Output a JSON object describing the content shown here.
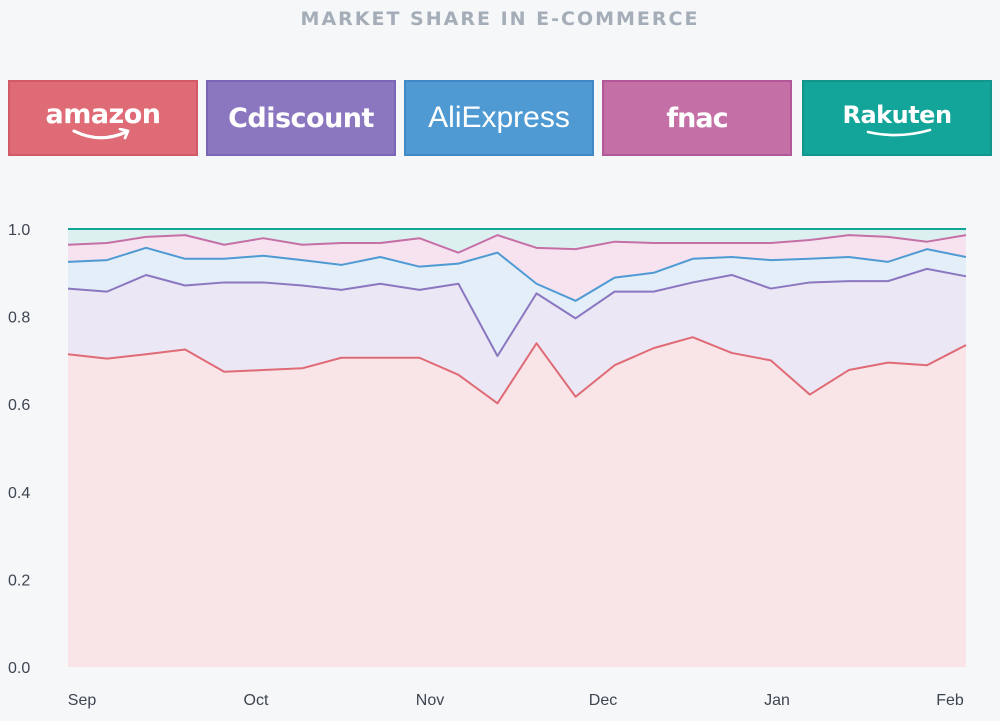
{
  "title": "MARKET SHARE IN E-COMMERCE",
  "legend": [
    {
      "label": "amazon",
      "color": "#df6b76",
      "icon": "amazon-logo"
    },
    {
      "label": "Cdiscount",
      "color": "#8b76c0",
      "icon": "cdiscount-logo"
    },
    {
      "label": "AliExpress",
      "color": "#4f9ad3",
      "icon": "aliexpress-logo"
    },
    {
      "label": "fnac",
      "color": "#c56fa7",
      "icon": "fnac-logo"
    },
    {
      "label": "Rakuten",
      "color": "#14a59a",
      "icon": "rakuten-logo"
    }
  ],
  "chart_data": {
    "type": "area",
    "stacked": true,
    "xlabel": "",
    "ylabel": "",
    "ylim": [
      0,
      1
    ],
    "grid": false,
    "legend_position": "top",
    "x_ticks": [
      "Sep",
      "Oct",
      "Nov",
      "Dec",
      "Jan",
      "Feb"
    ],
    "y_ticks": [
      "0.0",
      "0.2",
      "0.4",
      "0.6",
      "0.8",
      "1.0"
    ],
    "cumulative_series": [
      {
        "name": "amazon",
        "color": "#df6b76",
        "values": [
          0.714,
          0.704,
          0.714,
          0.725,
          0.674,
          0.678,
          0.682,
          0.706,
          0.706,
          0.706,
          0.667,
          0.602,
          0.739,
          0.617,
          0.689,
          0.728,
          0.753,
          0.717,
          0.7,
          0.622,
          0.678,
          0.695,
          0.689,
          0.735
        ]
      },
      {
        "name": "Cdiscount",
        "color": "#8b76c0",
        "values": [
          0.864,
          0.857,
          0.895,
          0.871,
          0.878,
          0.878,
          0.871,
          0.861,
          0.875,
          0.861,
          0.875,
          0.71,
          0.853,
          0.796,
          0.857,
          0.857,
          0.878,
          0.895,
          0.864,
          0.878,
          0.881,
          0.881,
          0.909,
          0.892
        ]
      },
      {
        "name": "AliExpress",
        "color": "#4f9ad3",
        "values": [
          0.925,
          0.929,
          0.957,
          0.932,
          0.932,
          0.939,
          0.929,
          0.918,
          0.936,
          0.914,
          0.921,
          0.946,
          0.875,
          0.836,
          0.889,
          0.9,
          0.932,
          0.936,
          0.929,
          0.932,
          0.936,
          0.925,
          0.954,
          0.936
        ]
      },
      {
        "name": "fnac",
        "color": "#c56fa7",
        "values": [
          0.964,
          0.968,
          0.982,
          0.986,
          0.964,
          0.979,
          0.964,
          0.968,
          0.968,
          0.979,
          0.946,
          0.986,
          0.957,
          0.954,
          0.971,
          0.968,
          0.968,
          0.968,
          0.968,
          0.975,
          0.986,
          0.982,
          0.971,
          0.986
        ]
      },
      {
        "name": "Rakuten",
        "color": "#14a59a",
        "values": [
          1.0,
          1.0,
          1.0,
          1.0,
          1.0,
          1.0,
          1.0,
          1.0,
          1.0,
          1.0,
          1.0,
          1.0,
          1.0,
          1.0,
          1.0,
          1.0,
          1.0,
          1.0,
          1.0,
          1.0,
          1.0,
          1.0,
          1.0,
          1.0
        ]
      }
    ],
    "fills": [
      "#f9e4e8",
      "#ece7f5",
      "#e3eef8",
      "#f6e3ef",
      "#dcf1ef"
    ]
  }
}
